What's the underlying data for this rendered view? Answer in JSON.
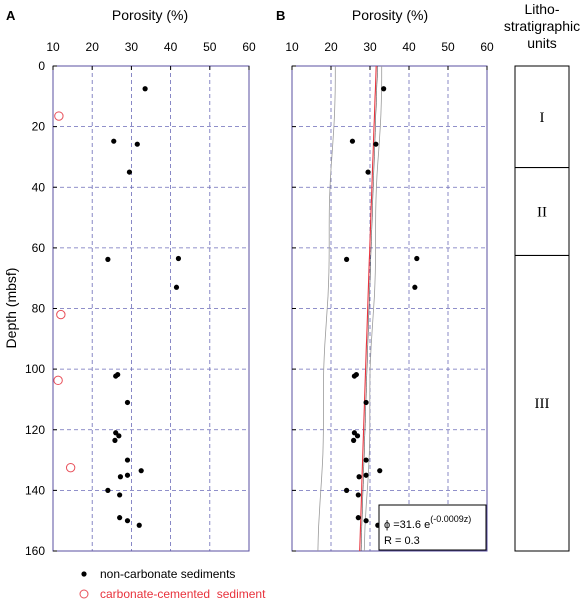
{
  "chart_data": [
    {
      "panel": "A",
      "type": "scatter",
      "title": "Porosity (%)",
      "ylabel": "Depth (mbsf)",
      "xlim": [
        10,
        60
      ],
      "ylim": [
        0,
        160
      ],
      "x_ticks": [
        "10",
        "20",
        "30",
        "40",
        "50",
        "60"
      ],
      "y_ticks": [
        "0",
        "20",
        "40",
        "60",
        "80",
        "100",
        "120",
        "140",
        "160"
      ],
      "grid": true,
      "series": [
        {
          "name": "non-carbonate sediments",
          "marker": "filled-circle",
          "color": "#000000",
          "points": [
            [
              33.5,
              7.5
            ],
            [
              25.5,
              24.8
            ],
            [
              31.5,
              25.8
            ],
            [
              29.5,
              35.0
            ],
            [
              42.0,
              63.5
            ],
            [
              24.0,
              63.8
            ],
            [
              41.5,
              73.0
            ],
            [
              26.5,
              101.8
            ],
            [
              26.0,
              102.3
            ],
            [
              29.0,
              111.0
            ],
            [
              26.0,
              121.0
            ],
            [
              26.8,
              122.0
            ],
            [
              25.8,
              123.5
            ],
            [
              29.0,
              130.0
            ],
            [
              32.5,
              133.5
            ],
            [
              29.0,
              135.0
            ],
            [
              27.2,
              135.5
            ],
            [
              27.0,
              141.5
            ],
            [
              24.0,
              140.0
            ],
            [
              27.0,
              149.0
            ],
            [
              29.0,
              150.0
            ],
            [
              32.0,
              151.5
            ]
          ]
        },
        {
          "name": "carbonate-cemented sediment",
          "marker": "open-circle",
          "color": "#e8505a",
          "points": [
            [
              11.5,
              16.5
            ],
            [
              12.0,
              82.0
            ],
            [
              11.3,
              103.7
            ],
            [
              14.5,
              132.5
            ]
          ]
        }
      ]
    },
    {
      "panel": "B",
      "type": "scatter",
      "title": "Porosity (%)",
      "xlim": [
        10,
        60
      ],
      "ylim": [
        0,
        160
      ],
      "x_ticks": [
        "10",
        "20",
        "30",
        "40",
        "50",
        "60"
      ],
      "grid": true,
      "series": [
        {
          "name": "non-carbonate sediments",
          "marker": "filled-circle",
          "color": "#000000",
          "points": [
            [
              33.5,
              7.5
            ],
            [
              25.5,
              24.8
            ],
            [
              31.5,
              25.8
            ],
            [
              29.5,
              35.0
            ],
            [
              42.0,
              63.5
            ],
            [
              24.0,
              63.8
            ],
            [
              41.5,
              73.0
            ],
            [
              26.5,
              101.8
            ],
            [
              26.0,
              102.3
            ],
            [
              29.0,
              111.0
            ],
            [
              26.0,
              121.0
            ],
            [
              26.8,
              122.0
            ],
            [
              25.8,
              123.5
            ],
            [
              29.0,
              130.0
            ],
            [
              32.5,
              133.5
            ],
            [
              29.0,
              135.0
            ],
            [
              27.2,
              135.5
            ],
            [
              27.0,
              141.5
            ],
            [
              24.0,
              140.0
            ],
            [
              27.0,
              149.0
            ],
            [
              29.0,
              150.0
            ],
            [
              32.0,
              151.5
            ]
          ]
        }
      ],
      "fit": {
        "equation_prefix": "ϕ =31.6 e",
        "equation_exponent": "(-0.0009z)",
        "r_label": "R = 0.3",
        "a": 31.6,
        "b": -0.0009,
        "color": "#e8323c"
      }
    }
  ],
  "units_panel": {
    "title_lines": [
      "Litho-",
      "stratigraphic",
      "units"
    ],
    "units": [
      {
        "label": "I",
        "top": 0,
        "bottom": 33.5
      },
      {
        "label": "II",
        "top": 33.5,
        "bottom": 62.5
      },
      {
        "label": "III",
        "top": 62.5,
        "bottom": 160
      }
    ]
  },
  "legend": [
    {
      "label": "non-carbonate sediments",
      "marker": "filled-circle",
      "text_color": "#000000"
    },
    {
      "label": "carbonate-cemented  sediment",
      "marker": "open-circle",
      "text_color": "#e8323c"
    }
  ]
}
